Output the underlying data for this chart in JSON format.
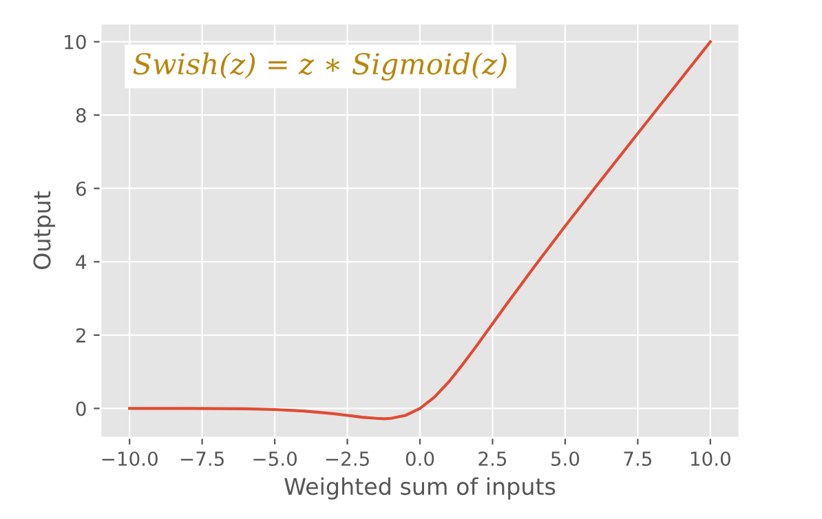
{
  "chart_data": {
    "type": "line",
    "xlabel": "Weighted sum of inputs",
    "ylabel": "Output",
    "annotations": [
      "Swish(z) = z ∗ Sigmoid(z)"
    ],
    "series": [
      {
        "color": "#e24a33",
        "x": [
          -10,
          -8,
          -6,
          -5,
          -4,
          -3,
          -2.5,
          -2,
          -1.5,
          -1.25,
          -1,
          -0.5,
          0,
          0.5,
          1,
          1.5,
          2,
          2.5,
          3,
          4,
          5,
          6,
          8,
          10
        ],
        "values": [
          0.0,
          0.0,
          -0.01,
          -0.03,
          -0.07,
          -0.14,
          -0.19,
          -0.24,
          -0.27,
          -0.28,
          -0.27,
          -0.19,
          0.0,
          0.31,
          0.73,
          1.23,
          1.76,
          2.31,
          2.86,
          3.93,
          4.97,
          5.99,
          8.0,
          10.0
        ]
      }
    ],
    "xlim": [
      -11,
      11
    ],
    "ylim": [
      -0.8,
      10.5
    ],
    "xticks": [
      {
        "value": -10,
        "label": "−10.0"
      },
      {
        "value": -7.5,
        "label": "−7.5"
      },
      {
        "value": -5,
        "label": "−5.0"
      },
      {
        "value": -2.5,
        "label": "−2.5"
      },
      {
        "value": 0,
        "label": "0.0"
      },
      {
        "value": 2.5,
        "label": "2.5"
      },
      {
        "value": 5,
        "label": "5.0"
      },
      {
        "value": 7.5,
        "label": "7.5"
      },
      {
        "value": 10,
        "label": "10.0"
      }
    ],
    "yticks": [
      0,
      2,
      4,
      6,
      8,
      10
    ],
    "grid": true
  }
}
